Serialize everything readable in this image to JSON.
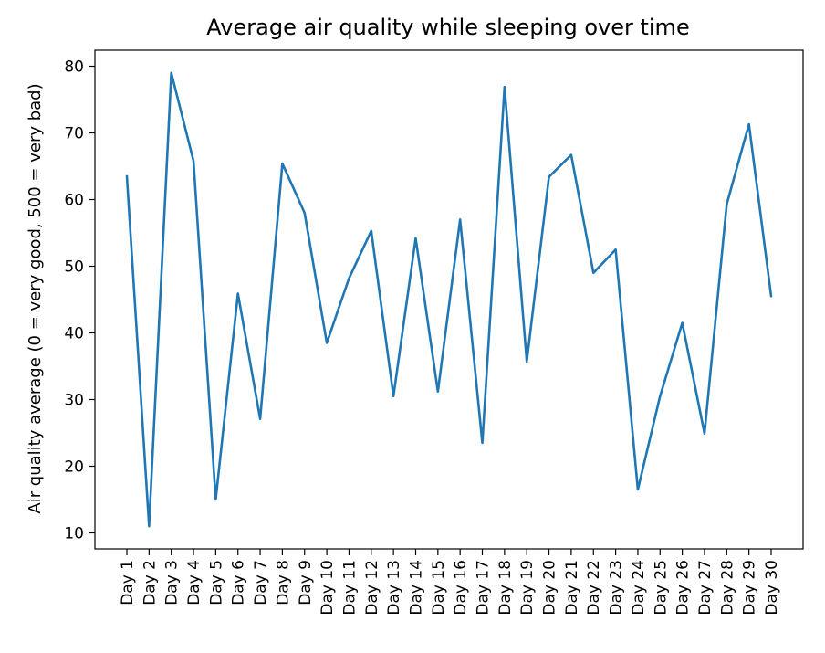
{
  "chart_data": {
    "type": "line",
    "title": "Average air quality while sleeping over time",
    "xlabel": "",
    "ylabel": "Air quality average (0 = very good, 500 = very bad)",
    "categories": [
      "Day 1",
      "Day 2",
      "Day 3",
      "Day 4",
      "Day 5",
      "Day 6",
      "Day 7",
      "Day 8",
      "Day 9",
      "Day 10",
      "Day 11",
      "Day 12",
      "Day 13",
      "Day 14",
      "Day 15",
      "Day 16",
      "Day 17",
      "Day 18",
      "Day 19",
      "Day 20",
      "Day 21",
      "Day 22",
      "Day 23",
      "Day 24",
      "Day 25",
      "Day 26",
      "Day 27",
      "Day 28",
      "Day 29",
      "Day 30"
    ],
    "series": [
      {
        "values": [
          63.5,
          11.0,
          79.0,
          65.8,
          15.0,
          45.9,
          27.1,
          65.4,
          58.0,
          38.5,
          48.2,
          55.3,
          30.5,
          54.2,
          31.2,
          57.0,
          23.5,
          76.9,
          35.7,
          63.4,
          66.7,
          49.0,
          52.5,
          16.5,
          30.5,
          41.5,
          24.9,
          59.3,
          71.3,
          45.5
        ],
        "color": "#1f77b4"
      }
    ],
    "yticks": [
      10,
      20,
      30,
      40,
      50,
      60,
      70,
      80
    ],
    "ylim": [
      7.6,
      82.4
    ],
    "grid": false
  }
}
